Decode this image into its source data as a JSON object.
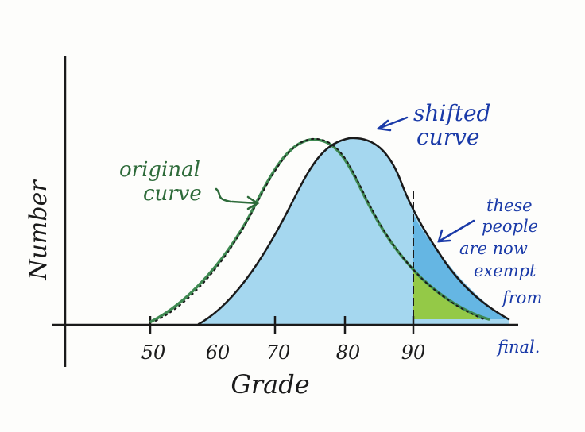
{
  "axes": {
    "y_label": "Number",
    "x_label": "Grade",
    "ticks": [
      "50",
      "60",
      "70",
      "80",
      "90"
    ]
  },
  "annotations": {
    "shifted_curve": [
      "shifted",
      "curve"
    ],
    "original_curve": [
      "original",
      "curve"
    ],
    "exempt_note": [
      "these",
      "people",
      "are now",
      "exempt",
      "from",
      "final."
    ]
  },
  "colors": {
    "ink": "#1a1a1a",
    "original": "#3f8a52",
    "original_label": "#2e6b3a",
    "shifted_fill": "#5cb8e6",
    "shifted_label": "#1a3aa8",
    "exempt_fill": "#9ccc2c"
  }
}
